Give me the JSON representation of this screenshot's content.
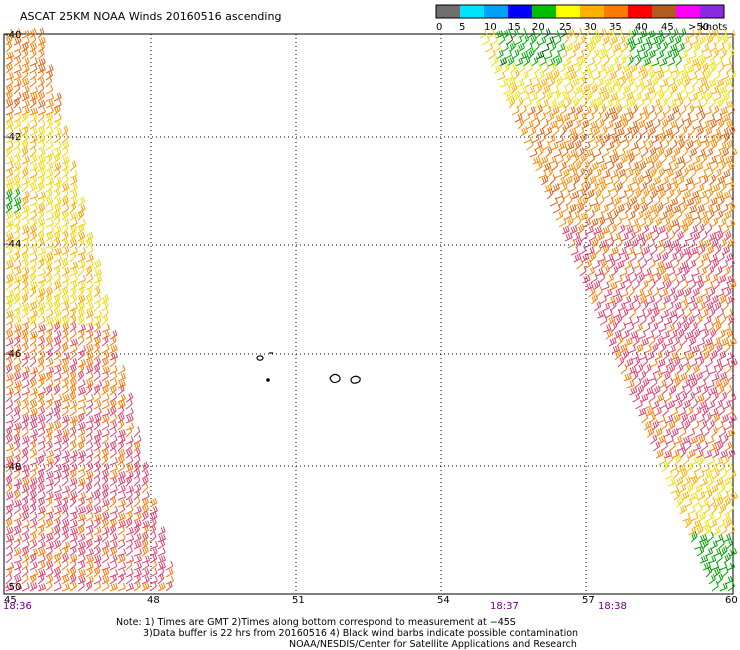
{
  "title": "ASCAT 25KM NOAA Winds 20160516 ascending",
  "legend": {
    "unit": "knots",
    "ticks": [
      "0",
      "5",
      "10",
      "15",
      "20",
      "25",
      "30",
      "35",
      "40",
      "45",
      ">50"
    ],
    "colors": [
      "#6e6e6e",
      "#00e4ff",
      "#00a0ff",
      "#0000ff",
      "#00c000",
      "#ffff00",
      "#ffb000",
      "#ff7a00",
      "#ff0000",
      "#b35a1e",
      "#ff00ff",
      "#8a2be2"
    ]
  },
  "axes": {
    "lat_labels": [
      "-40",
      "-42",
      "-44",
      "-46",
      "-48",
      "-50"
    ],
    "lon_labels": [
      "45",
      "48",
      "51",
      "54",
      "57",
      "60"
    ]
  },
  "times": [
    "18:36",
    "18:37",
    "18:38"
  ],
  "notes": [
    "Note: 1) Times are GMT 2)Times along bottom correspond to measurement at −45S",
    "3)Data buffer is 22 hrs from 20160516 4) Black wind barbs indicate possible contamination",
    "NOAA/NESDIS/Center for Satellite Applications and Research"
  ],
  "wind_swaths": [
    {
      "side": "west",
      "dominant_colors": [
        "#ff7a00",
        "#ffff00",
        "#e0406e"
      ]
    },
    {
      "side": "east",
      "dominant_colors": [
        "#ffff00",
        "#ff7a00",
        "#e0406e",
        "#00c000"
      ]
    }
  ]
}
